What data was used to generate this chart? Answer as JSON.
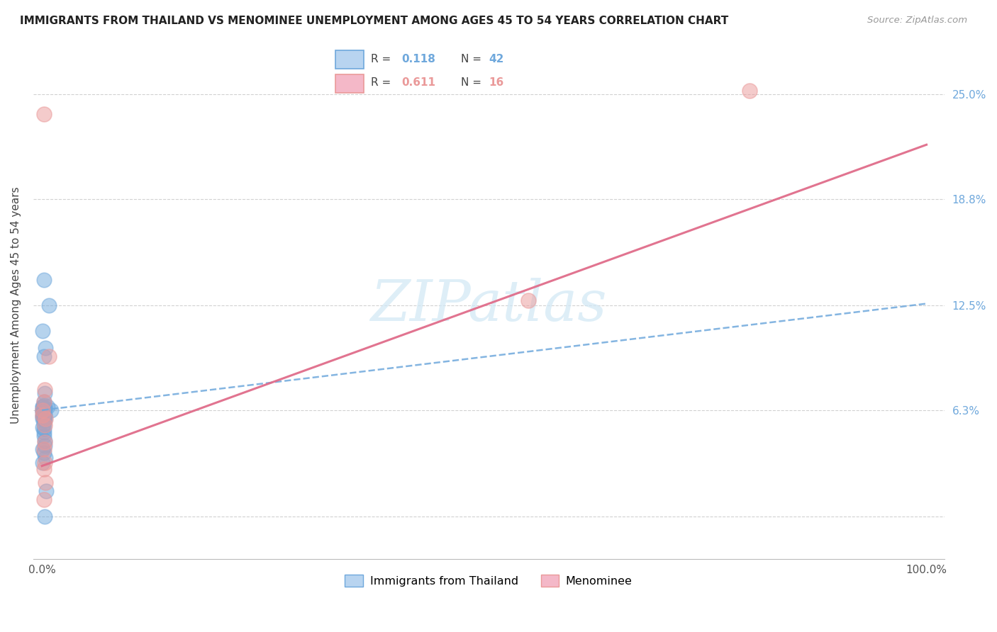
{
  "title": "IMMIGRANTS FROM THAILAND VS MENOMINEE UNEMPLOYMENT AMONG AGES 45 TO 54 YEARS CORRELATION CHART",
  "source": "Source: ZipAtlas.com",
  "ylabel": "Unemployment Among Ages 45 to 54 years",
  "yticks": [
    0.0,
    0.063,
    0.125,
    0.188,
    0.25
  ],
  "ytick_labels": [
    "",
    "6.3%",
    "12.5%",
    "18.8%",
    "25.0%"
  ],
  "xticks": [
    0.0,
    0.1,
    0.2,
    0.3,
    0.4,
    0.5,
    0.6,
    0.7,
    0.8,
    0.9,
    1.0
  ],
  "xtick_labels": [
    "0.0%",
    "",
    "",
    "",
    "",
    "",
    "",
    "",
    "",
    "",
    "100.0%"
  ],
  "xlim": [
    -0.01,
    1.02
  ],
  "ylim": [
    -0.025,
    0.275
  ],
  "color_blue": "#6fa8dc",
  "color_pink": "#ea9999",
  "color_line_blue": "#6fa8dc",
  "color_line_pink": "#e06c8a",
  "watermark_text": "ZIPatlas",
  "watermark_color": "#d0e8f5",
  "background_color": "#ffffff",
  "grid_color": "#cccccc",
  "blue_line_start_y": 0.063,
  "blue_line_end_y": 0.126,
  "pink_line_start_y": 0.03,
  "pink_line_end_y": 0.22,
  "blue_points_x": [
    0.001,
    0.002,
    0.001,
    0.003,
    0.001,
    0.002,
    0.002,
    0.003,
    0.001,
    0.002,
    0.001,
    0.002,
    0.003,
    0.002,
    0.001,
    0.003,
    0.002,
    0.003,
    0.002,
    0.001,
    0.002,
    0.001,
    0.002,
    0.003,
    0.001,
    0.003,
    0.002,
    0.004,
    0.001,
    0.005,
    0.002,
    0.003,
    0.001,
    0.006,
    0.002,
    0.004,
    0.001,
    0.008,
    0.002,
    0.003,
    0.002,
    0.01
  ],
  "blue_points_y": [
    0.065,
    0.063,
    0.062,
    0.064,
    0.06,
    0.066,
    0.058,
    0.06,
    0.063,
    0.061,
    0.058,
    0.055,
    0.057,
    0.052,
    0.059,
    0.06,
    0.063,
    0.064,
    0.057,
    0.065,
    0.05,
    0.053,
    0.048,
    0.045,
    0.04,
    0.042,
    0.038,
    0.035,
    0.032,
    0.015,
    0.068,
    0.073,
    0.063,
    0.065,
    0.095,
    0.1,
    0.11,
    0.125,
    0.14,
    0.0,
    0.058,
    0.063
  ],
  "pink_points_x": [
    0.001,
    0.002,
    0.001,
    0.003,
    0.002,
    0.003,
    0.002,
    0.003,
    0.004,
    0.003,
    0.008,
    0.004,
    0.002,
    0.55,
    0.002,
    0.8
  ],
  "pink_points_y": [
    0.063,
    0.068,
    0.06,
    0.075,
    0.028,
    0.032,
    0.04,
    0.044,
    0.02,
    0.054,
    0.095,
    0.058,
    0.01,
    0.128,
    0.238,
    0.252
  ]
}
